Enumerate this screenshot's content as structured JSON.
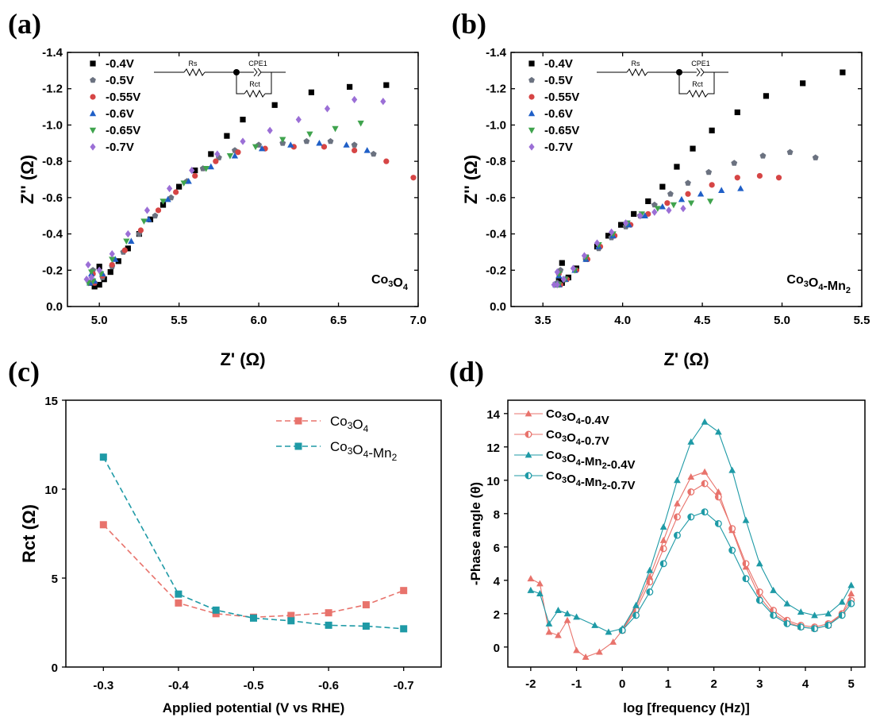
{
  "chart_data": [
    {
      "panel": "(a)",
      "type": "scatter",
      "xlabel": "Z' (Ω)",
      "ylabel": "Z'' (Ω)",
      "xlim": [
        4.8,
        7.0
      ],
      "ylim": [
        0.0,
        -1.4
      ],
      "xticks": [
        "5.0",
        "5.5",
        "6.0",
        "6.5",
        "7.0"
      ],
      "yticks": [
        "0.0",
        "-0.2",
        "-0.4",
        "-0.6",
        "-0.8",
        "-1.0",
        "-1.2",
        "-1.4"
      ],
      "material_label": "Co3O4",
      "legend_position": "top-left",
      "circuit": {
        "rs": "Rs",
        "cpe": "CPE1",
        "rct": "Rct"
      },
      "series": [
        {
          "name": "-0.4V",
          "marker": "square",
          "color": "#000000",
          "x": [
            5.0,
            4.95,
            4.97,
            5.0,
            5.03,
            5.07,
            5.12,
            5.18,
            5.25,
            5.32,
            5.4,
            5.5,
            5.6,
            5.7,
            5.8,
            5.9,
            6.1,
            6.33,
            6.57,
            6.8
          ],
          "y": [
            -0.22,
            -0.13,
            -0.11,
            -0.12,
            -0.15,
            -0.19,
            -0.25,
            -0.32,
            -0.4,
            -0.48,
            -0.56,
            -0.66,
            -0.75,
            -0.84,
            -0.94,
            -1.03,
            -1.11,
            -1.18,
            -1.21,
            -1.22
          ]
        },
        {
          "name": "-0.5V",
          "marker": "pentagon",
          "color": "#6b7280",
          "x": [
            4.96,
            4.94,
            4.97,
            5.02,
            5.08,
            5.15,
            5.25,
            5.35,
            5.45,
            5.55,
            5.65,
            5.75,
            5.85,
            6.0,
            6.15,
            6.3,
            6.45,
            6.6,
            6.72
          ],
          "y": [
            -0.2,
            -0.13,
            -0.13,
            -0.16,
            -0.22,
            -0.3,
            -0.4,
            -0.5,
            -0.6,
            -0.69,
            -0.76,
            -0.82,
            -0.86,
            -0.89,
            -0.9,
            -0.91,
            -0.91,
            -0.89,
            -0.84
          ]
        },
        {
          "name": "-0.55V",
          "marker": "circle",
          "color": "#d64545",
          "x": [
            4.96,
            4.94,
            4.97,
            5.02,
            5.08,
            5.16,
            5.26,
            5.37,
            5.48,
            5.6,
            5.73,
            5.87,
            6.04,
            6.22,
            6.41,
            6.6,
            6.8,
            6.97
          ],
          "y": [
            -0.18,
            -0.13,
            -0.13,
            -0.17,
            -0.23,
            -0.31,
            -0.42,
            -0.53,
            -0.63,
            -0.72,
            -0.8,
            -0.85,
            -0.87,
            -0.88,
            -0.88,
            -0.86,
            -0.8,
            -0.71
          ]
        },
        {
          "name": "-0.6V",
          "marker": "triangle-up",
          "color": "#1f5fc7",
          "x": [
            4.95,
            4.94,
            4.97,
            5.02,
            5.1,
            5.2,
            5.31,
            5.43,
            5.56,
            5.7,
            5.85,
            6.02,
            6.2,
            6.38,
            6.55,
            6.68
          ],
          "y": [
            -0.18,
            -0.13,
            -0.14,
            -0.18,
            -0.26,
            -0.36,
            -0.48,
            -0.59,
            -0.69,
            -0.77,
            -0.83,
            -0.87,
            -0.89,
            -0.9,
            -0.89,
            -0.86
          ]
        },
        {
          "name": "-0.65V",
          "marker": "triangle-down",
          "color": "#3fa34d",
          "x": [
            4.95,
            4.93,
            4.96,
            5.01,
            5.08,
            5.17,
            5.28,
            5.4,
            5.53,
            5.67,
            5.82,
            5.98,
            6.15,
            6.32,
            6.48,
            6.64
          ],
          "y": [
            -0.19,
            -0.13,
            -0.14,
            -0.18,
            -0.26,
            -0.36,
            -0.47,
            -0.58,
            -0.68,
            -0.76,
            -0.83,
            -0.88,
            -0.92,
            -0.95,
            -0.98,
            -1.01
          ]
        },
        {
          "name": "-0.7V",
          "marker": "diamond",
          "color": "#9b6fd6",
          "x": [
            4.93,
            4.92,
            4.95,
            5.0,
            5.08,
            5.18,
            5.3,
            5.44,
            5.58,
            5.74,
            5.9,
            6.07,
            6.25,
            6.43,
            6.6,
            6.78
          ],
          "y": [
            -0.23,
            -0.15,
            -0.16,
            -0.2,
            -0.29,
            -0.4,
            -0.53,
            -0.65,
            -0.75,
            -0.84,
            -0.91,
            -0.97,
            -1.03,
            -1.09,
            -1.14,
            -1.13
          ]
        }
      ]
    },
    {
      "panel": "(b)",
      "type": "scatter",
      "xlabel": "Z' (Ω)",
      "ylabel": "Z'' (Ω)",
      "xlim": [
        3.3,
        5.5
      ],
      "ylim": [
        0.0,
        -1.4
      ],
      "xticks": [
        "3.5",
        "4.0",
        "4.5",
        "5.0",
        "5.5"
      ],
      "yticks": [
        "0.0",
        "-0.2",
        "-0.4",
        "-0.6",
        "-0.8",
        "-1.0",
        "-1.2",
        "-1.4"
      ],
      "material_label": "Co3O4-Mn2",
      "legend_position": "top-left",
      "circuit": {
        "rs": "Rs",
        "cpe": "CPE1",
        "rct": "Rct"
      },
      "series": [
        {
          "name": "-0.4V",
          "marker": "square",
          "color": "#000000",
          "x": [
            3.62,
            3.6,
            3.62,
            3.66,
            3.71,
            3.77,
            3.84,
            3.91,
            3.99,
            4.07,
            4.16,
            4.25,
            4.34,
            4.44,
            4.56,
            4.72,
            4.9,
            5.13,
            5.38
          ],
          "y": [
            -0.24,
            -0.14,
            -0.13,
            -0.16,
            -0.21,
            -0.27,
            -0.33,
            -0.39,
            -0.45,
            -0.51,
            -0.58,
            -0.66,
            -0.77,
            -0.87,
            -0.97,
            -1.07,
            -1.16,
            -1.23,
            -1.29
          ]
        },
        {
          "name": "-0.5V",
          "marker": "pentagon",
          "color": "#6b7280",
          "x": [
            3.61,
            3.59,
            3.61,
            3.65,
            3.7,
            3.77,
            3.85,
            3.93,
            4.02,
            4.11,
            4.2,
            4.3,
            4.41,
            4.54,
            4.7,
            4.88,
            5.05,
            5.21
          ],
          "y": [
            -0.2,
            -0.13,
            -0.12,
            -0.15,
            -0.2,
            -0.26,
            -0.32,
            -0.38,
            -0.44,
            -0.5,
            -0.56,
            -0.62,
            -0.68,
            -0.74,
            -0.79,
            -0.83,
            -0.85,
            -0.82
          ]
        },
        {
          "name": "-0.55V",
          "marker": "circle",
          "color": "#d64545",
          "x": [
            3.6,
            3.59,
            3.61,
            3.65,
            3.71,
            3.78,
            3.86,
            3.95,
            4.05,
            4.16,
            4.28,
            4.41,
            4.56,
            4.72,
            4.86,
            4.98
          ],
          "y": [
            -0.18,
            -0.12,
            -0.12,
            -0.15,
            -0.2,
            -0.26,
            -0.33,
            -0.39,
            -0.45,
            -0.51,
            -0.57,
            -0.62,
            -0.67,
            -0.71,
            -0.72,
            -0.71
          ]
        },
        {
          "name": "-0.6V",
          "marker": "triangle-up",
          "color": "#1f5fc7",
          "x": [
            3.6,
            3.58,
            3.6,
            3.64,
            3.7,
            3.77,
            3.85,
            3.94,
            4.04,
            4.14,
            4.25,
            4.37,
            4.49,
            4.62,
            4.74
          ],
          "y": [
            -0.17,
            -0.12,
            -0.12,
            -0.15,
            -0.2,
            -0.26,
            -0.33,
            -0.39,
            -0.45,
            -0.5,
            -0.55,
            -0.59,
            -0.62,
            -0.64,
            -0.65
          ]
        },
        {
          "name": "-0.65V",
          "marker": "triangle-down",
          "color": "#3fa34d",
          "x": [
            3.6,
            3.58,
            3.6,
            3.64,
            3.7,
            3.77,
            3.85,
            3.94,
            4.03,
            4.12,
            4.22,
            4.32,
            4.43,
            4.55
          ],
          "y": [
            -0.18,
            -0.12,
            -0.12,
            -0.15,
            -0.2,
            -0.27,
            -0.34,
            -0.4,
            -0.46,
            -0.51,
            -0.54,
            -0.56,
            -0.57,
            -0.58
          ]
        },
        {
          "name": "-0.7V",
          "marker": "diamond",
          "color": "#9b6fd6",
          "x": [
            3.59,
            3.57,
            3.59,
            3.63,
            3.69,
            3.76,
            3.84,
            3.93,
            4.02,
            4.11,
            4.2,
            4.29,
            4.38
          ],
          "y": [
            -0.19,
            -0.12,
            -0.12,
            -0.15,
            -0.21,
            -0.28,
            -0.35,
            -0.41,
            -0.46,
            -0.5,
            -0.52,
            -0.53,
            -0.54
          ]
        }
      ]
    },
    {
      "panel": "(c)",
      "type": "line",
      "xlabel": "Applied potential (V vs RHE)",
      "ylabel": "Rct (Ω)",
      "xlim": [
        -0.25,
        -0.75
      ],
      "ylim": [
        0,
        15
      ],
      "xticks": [
        "-0.3",
        "-0.4",
        "-0.5",
        "-0.6",
        "-0.7"
      ],
      "yticks": [
        "0",
        "5",
        "10",
        "15"
      ],
      "legend_position": "top-right",
      "series": [
        {
          "name": "Co3O4",
          "color": "#e8736c",
          "marker": "square",
          "dashed": true,
          "x": [
            -0.3,
            -0.4,
            -0.45,
            -0.5,
            -0.55,
            -0.6,
            -0.65,
            -0.7
          ],
          "y": [
            8.0,
            3.6,
            3.0,
            2.8,
            2.9,
            3.05,
            3.5,
            4.3
          ]
        },
        {
          "name": "Co3O4-Mn2",
          "color": "#1e9aa6",
          "marker": "square",
          "dashed": true,
          "x": [
            -0.3,
            -0.4,
            -0.45,
            -0.5,
            -0.55,
            -0.6,
            -0.65,
            -0.7
          ],
          "y": [
            11.8,
            4.1,
            3.2,
            2.75,
            2.6,
            2.35,
            2.3,
            2.15
          ]
        }
      ]
    },
    {
      "panel": "(d)",
      "type": "line",
      "xlabel": "log [frequency (Hz)]",
      "ylabel": "-Phase angle (θ)",
      "xlim": [
        -2.5,
        5.3
      ],
      "ylim": [
        -1.2,
        14.8
      ],
      "xticks": [
        "-2",
        "-1",
        "0",
        "1",
        "2",
        "3",
        "4",
        "5"
      ],
      "yticks": [
        "0",
        "2",
        "4",
        "6",
        "8",
        "10",
        "12",
        "14"
      ],
      "legend_position": "top-left",
      "series": [
        {
          "name": "Co3O4-0.4V",
          "color": "#e8736c",
          "marker": "triangle-up",
          "x": [
            -2.0,
            -1.8,
            -1.6,
            -1.4,
            -1.2,
            -1.0,
            -0.8,
            -0.5,
            -0.2,
            0.0,
            0.3,
            0.6,
            0.9,
            1.2,
            1.5,
            1.8,
            2.1,
            2.4,
            2.7,
            3.0,
            3.3,
            3.6,
            3.9,
            4.2,
            4.5,
            4.8,
            5.0
          ],
          "y": [
            4.1,
            3.8,
            0.9,
            0.7,
            1.6,
            -0.2,
            -0.6,
            -0.3,
            0.3,
            1.0,
            2.4,
            4.2,
            6.4,
            8.6,
            10.2,
            10.5,
            9.3,
            7.0,
            4.8,
            3.0,
            2.0,
            1.5,
            1.2,
            1.1,
            1.3,
            2.0,
            3.2
          ]
        },
        {
          "name": "Co3O4-0.7V",
          "color": "#e8736c",
          "marker": "half-circle",
          "x": [
            0.0,
            0.3,
            0.6,
            0.9,
            1.2,
            1.5,
            1.8,
            2.1,
            2.4,
            2.7,
            3.0,
            3.3,
            3.6,
            3.9,
            4.2,
            4.5,
            4.8,
            5.0
          ],
          "y": [
            1.0,
            2.2,
            3.9,
            5.9,
            7.8,
            9.3,
            9.8,
            9.0,
            7.1,
            5.0,
            3.3,
            2.2,
            1.6,
            1.3,
            1.2,
            1.4,
            2.0,
            2.8
          ]
        },
        {
          "name": "Co3O4-Mn2-0.4V",
          "color": "#1e9aa6",
          "marker": "triangle-up",
          "x": [
            -2.0,
            -1.8,
            -1.6,
            -1.4,
            -1.2,
            -1.0,
            -0.6,
            -0.3,
            0.0,
            0.3,
            0.6,
            0.9,
            1.2,
            1.5,
            1.8,
            2.1,
            2.4,
            2.7,
            3.0,
            3.3,
            3.6,
            3.9,
            4.2,
            4.5,
            4.8,
            5.0
          ],
          "y": [
            3.4,
            3.2,
            1.4,
            2.2,
            2.0,
            1.8,
            1.3,
            0.9,
            1.1,
            2.5,
            4.6,
            7.2,
            10.0,
            12.3,
            13.5,
            12.9,
            10.6,
            7.6,
            5.0,
            3.4,
            2.6,
            2.1,
            1.9,
            2.0,
            2.7,
            3.7
          ]
        },
        {
          "name": "Co3O4-Mn2-0.7V",
          "color": "#1e9aa6",
          "marker": "half-circle",
          "x": [
            0.0,
            0.3,
            0.6,
            0.9,
            1.2,
            1.5,
            1.8,
            2.1,
            2.4,
            2.7,
            3.0,
            3.3,
            3.6,
            3.9,
            4.2,
            4.5,
            4.8,
            5.0
          ],
          "y": [
            1.0,
            1.9,
            3.3,
            5.0,
            6.7,
            7.8,
            8.1,
            7.4,
            5.8,
            4.1,
            2.8,
            1.9,
            1.4,
            1.2,
            1.1,
            1.3,
            1.9,
            2.6
          ]
        }
      ]
    }
  ]
}
